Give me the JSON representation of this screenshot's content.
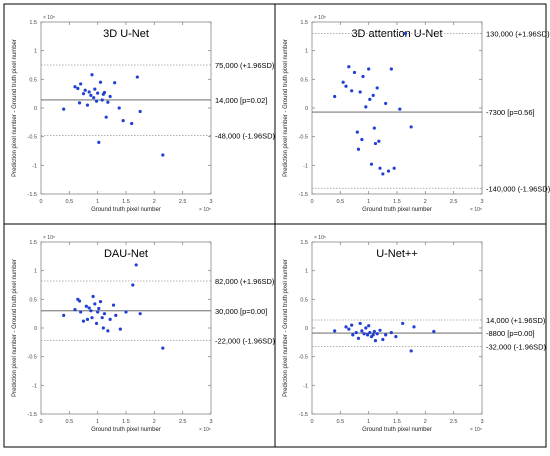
{
  "chart_data": [
    {
      "type": "scatter",
      "title": "3D U-Net",
      "xlabel": "Ground truth pixel number",
      "ylabel": "Prediction pixel number - Ground truth pixel number",
      "x_multiplier": "× 10⁵",
      "y_multiplier": "× 10⁵",
      "xlim": [
        0,
        3
      ],
      "ylim": [
        -1.5,
        1.5
      ],
      "xticks": [
        "0",
        "0.5",
        "1",
        "1.5",
        "2",
        "2.5",
        "3"
      ],
      "yticks": [
        "-1.5",
        "-1",
        "-0.5",
        "0",
        "0.5",
        "1",
        "1.5"
      ],
      "grid": false,
      "marker_color": "#1f3fd6",
      "reference_lines": [
        {
          "y": 0.75,
          "style": "dotted",
          "label": "75,000 (+1.96SD)"
        },
        {
          "y": 0.14,
          "style": "solid",
          "label": "14,000 [p=0.02]"
        },
        {
          "y": -0.48,
          "style": "dotted",
          "label": "-48,000 (-1.96SD)"
        }
      ],
      "points": [
        [
          0.4,
          -0.02
        ],
        [
          0.6,
          0.37
        ],
        [
          0.65,
          0.34
        ],
        [
          0.68,
          0.09
        ],
        [
          0.7,
          0.42
        ],
        [
          0.75,
          0.25
        ],
        [
          0.78,
          0.31
        ],
        [
          0.82,
          0.05
        ],
        [
          0.85,
          0.28
        ],
        [
          0.88,
          0.22
        ],
        [
          0.9,
          0.58
        ],
        [
          0.93,
          0.18
        ],
        [
          0.95,
          0.33
        ],
        [
          0.98,
          0.12
        ],
        [
          1.0,
          0.26
        ],
        [
          1.02,
          -0.6
        ],
        [
          1.05,
          0.45
        ],
        [
          1.08,
          0.14
        ],
        [
          1.1,
          0.24
        ],
        [
          1.12,
          0.27
        ],
        [
          1.15,
          -0.16
        ],
        [
          1.18,
          0.1
        ],
        [
          1.22,
          0.2
        ],
        [
          1.3,
          0.44
        ],
        [
          1.38,
          0.0
        ],
        [
          1.45,
          -0.22
        ],
        [
          1.6,
          -0.27
        ],
        [
          1.7,
          0.54
        ],
        [
          1.75,
          -0.06
        ],
        [
          2.15,
          -0.82
        ]
      ]
    },
    {
      "type": "scatter",
      "title": "3D attention U-Net",
      "xlabel": "Ground truth pixel number",
      "ylabel": "Prediction pixel number - Ground truth pixel number",
      "x_multiplier": "× 10⁵",
      "y_multiplier": "× 10⁵",
      "xlim": [
        0,
        3
      ],
      "ylim": [
        -1.5,
        1.5
      ],
      "xticks": [
        "0",
        "0.5",
        "1",
        "1.5",
        "2",
        "2.5",
        "3"
      ],
      "yticks": [
        "-1.5",
        "-1",
        "-0.5",
        "0",
        "0.5",
        "1",
        "1.5"
      ],
      "grid": false,
      "marker_color": "#1f3fd6",
      "reference_lines": [
        {
          "y": 1.3,
          "style": "dotted",
          "label": "130,000 (+1.96SD)"
        },
        {
          "y": -0.07,
          "style": "solid",
          "label": "-7300 [p=0.56]"
        },
        {
          "y": -1.4,
          "style": "dotted",
          "label": "-140,000 (-1.96SD)"
        }
      ],
      "points": [
        [
          0.4,
          0.2
        ],
        [
          0.55,
          0.45
        ],
        [
          0.6,
          0.38
        ],
        [
          0.65,
          0.72
        ],
        [
          0.7,
          0.3
        ],
        [
          0.75,
          0.62
        ],
        [
          0.8,
          -0.42
        ],
        [
          0.82,
          -0.72
        ],
        [
          0.85,
          0.28
        ],
        [
          0.88,
          -0.55
        ],
        [
          0.9,
          0.55
        ],
        [
          0.95,
          0.02
        ],
        [
          1.0,
          0.68
        ],
        [
          1.02,
          0.15
        ],
        [
          1.05,
          -0.98
        ],
        [
          1.08,
          0.22
        ],
        [
          1.1,
          -0.35
        ],
        [
          1.12,
          -0.62
        ],
        [
          1.15,
          0.35
        ],
        [
          1.18,
          -0.58
        ],
        [
          1.2,
          -1.05
        ],
        [
          1.25,
          -1.15
        ],
        [
          1.3,
          0.08
        ],
        [
          1.35,
          -1.1
        ],
        [
          1.4,
          0.68
        ],
        [
          1.45,
          -1.05
        ],
        [
          1.55,
          -0.02
        ],
        [
          1.65,
          1.3
        ],
        [
          1.75,
          -0.33
        ]
      ]
    },
    {
      "type": "scatter",
      "title": "DAU-Net",
      "xlabel": "Ground truth pixel number",
      "ylabel": "Prediction pixel number - Ground truth pixel number",
      "x_multiplier": "× 10⁵",
      "y_multiplier": "× 10⁵",
      "xlim": [
        0,
        3
      ],
      "ylim": [
        -1.5,
        1.5
      ],
      "xticks": [
        "0",
        "0.5",
        "1",
        "1.5",
        "2",
        "2.5",
        "3"
      ],
      "yticks": [
        "-1.5",
        "-1",
        "-0.5",
        "0",
        "0.5",
        "1",
        "1.5"
      ],
      "grid": false,
      "marker_color": "#1f3fd6",
      "reference_lines": [
        {
          "y": 0.82,
          "style": "dotted",
          "label": "82,000 (+1.96SD)"
        },
        {
          "y": 0.3,
          "style": "solid",
          "label": "30,000 [p=0.00]"
        },
        {
          "y": -0.22,
          "style": "dotted",
          "label": "-22,000 (-1.96SD)"
        }
      ],
      "points": [
        [
          0.4,
          0.22
        ],
        [
          0.6,
          0.32
        ],
        [
          0.65,
          0.5
        ],
        [
          0.68,
          0.47
        ],
        [
          0.7,
          0.28
        ],
        [
          0.75,
          0.12
        ],
        [
          0.8,
          0.38
        ],
        [
          0.82,
          0.15
        ],
        [
          0.85,
          0.35
        ],
        [
          0.88,
          0.3
        ],
        [
          0.9,
          0.18
        ],
        [
          0.92,
          0.55
        ],
        [
          0.95,
          0.42
        ],
        [
          0.98,
          0.08
        ],
        [
          1.0,
          0.28
        ],
        [
          1.02,
          0.34
        ],
        [
          1.05,
          0.46
        ],
        [
          1.08,
          0.18
        ],
        [
          1.1,
          0.0
        ],
        [
          1.12,
          0.25
        ],
        [
          1.18,
          -0.05
        ],
        [
          1.22,
          0.15
        ],
        [
          1.28,
          0.4
        ],
        [
          1.32,
          0.22
        ],
        [
          1.4,
          -0.02
        ],
        [
          1.5,
          0.28
        ],
        [
          1.62,
          0.75
        ],
        [
          1.68,
          1.1
        ],
        [
          1.75,
          0.25
        ],
        [
          2.15,
          -0.35
        ]
      ]
    },
    {
      "type": "scatter",
      "title": "U-Net++",
      "xlabel": "Ground truth pixel number",
      "ylabel": "Prediction pixel number - Ground truth pixel number",
      "x_multiplier": "× 10⁵",
      "y_multiplier": "× 10⁵",
      "xlim": [
        0,
        3
      ],
      "ylim": [
        -1.5,
        1.5
      ],
      "xticks": [
        "0",
        "0.5",
        "1",
        "1.5",
        "2",
        "2.5",
        "3"
      ],
      "yticks": [
        "-1.5",
        "-1",
        "-0.5",
        "0",
        "0.5",
        "1",
        "1.5"
      ],
      "grid": false,
      "marker_color": "#1f3fd6",
      "reference_lines": [
        {
          "y": 0.14,
          "style": "dotted",
          "label": "14,000 (+1.96SD)"
        },
        {
          "y": -0.088,
          "style": "solid",
          "label": "-8800 [p=0.00]"
        },
        {
          "y": -0.32,
          "style": "dotted",
          "label": "-32,000 (-1.96SD)"
        }
      ],
      "points": [
        [
          0.4,
          -0.05
        ],
        [
          0.6,
          0.02
        ],
        [
          0.65,
          -0.02
        ],
        [
          0.7,
          0.05
        ],
        [
          0.72,
          -0.12
        ],
        [
          0.78,
          -0.08
        ],
        [
          0.82,
          -0.18
        ],
        [
          0.85,
          0.08
        ],
        [
          0.88,
          -0.05
        ],
        [
          0.92,
          -0.1
        ],
        [
          0.95,
          0.0
        ],
        [
          0.98,
          -0.12
        ],
        [
          1.0,
          0.04
        ],
        [
          1.02,
          -0.08
        ],
        [
          1.05,
          -0.15
        ],
        [
          1.08,
          -0.12
        ],
        [
          1.1,
          -0.06
        ],
        [
          1.12,
          -0.22
        ],
        [
          1.15,
          -0.1
        ],
        [
          1.2,
          -0.04
        ],
        [
          1.25,
          -0.2
        ],
        [
          1.3,
          -0.12
        ],
        [
          1.4,
          -0.08
        ],
        [
          1.48,
          -0.15
        ],
        [
          1.6,
          0.08
        ],
        [
          1.75,
          -0.4
        ],
        [
          1.8,
          0.02
        ],
        [
          2.15,
          -0.06
        ]
      ]
    }
  ]
}
